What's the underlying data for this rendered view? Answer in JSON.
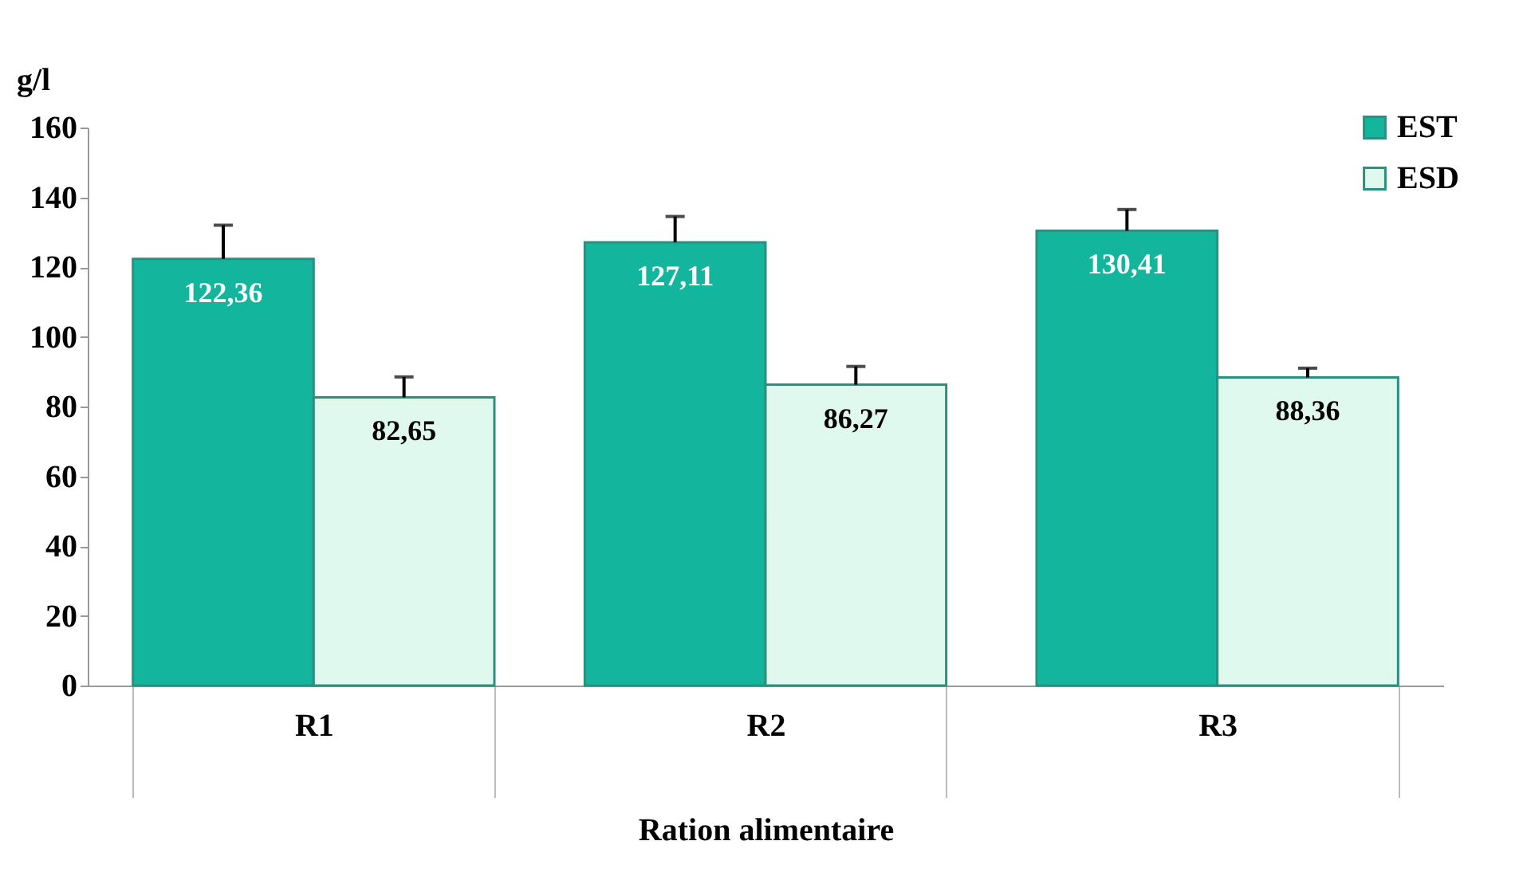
{
  "chart_data": {
    "type": "bar",
    "xlabel": "Ration alimentaire",
    "ylabel": "g/l",
    "categories": [
      "R1",
      "R2",
      "R3"
    ],
    "series": [
      {
        "name": "EST",
        "color": "#13b59d",
        "values": [
          122.36,
          127.11,
          130.41
        ],
        "errors": [
          [
            122.36,
            132
          ],
          [
            127.11,
            134.5
          ],
          [
            130.41,
            136.5
          ]
        ],
        "value_labels": [
          "122,36",
          "127,11",
          "130,41"
        ]
      },
      {
        "name": "ESD",
        "color": "#e0f9ee",
        "values": [
          82.65,
          86.27,
          88.36
        ],
        "errors": [
          [
            82.65,
            88.5
          ],
          [
            86.27,
            91.5
          ],
          [
            88.36,
            91
          ]
        ],
        "value_labels": [
          "82,65",
          "86,27",
          "88,36"
        ]
      }
    ],
    "ylim": [
      0,
      160
    ],
    "yticks": [
      0,
      20,
      40,
      60,
      80,
      100,
      120,
      140,
      160
    ],
    "grid": false,
    "legend": "top right"
  }
}
